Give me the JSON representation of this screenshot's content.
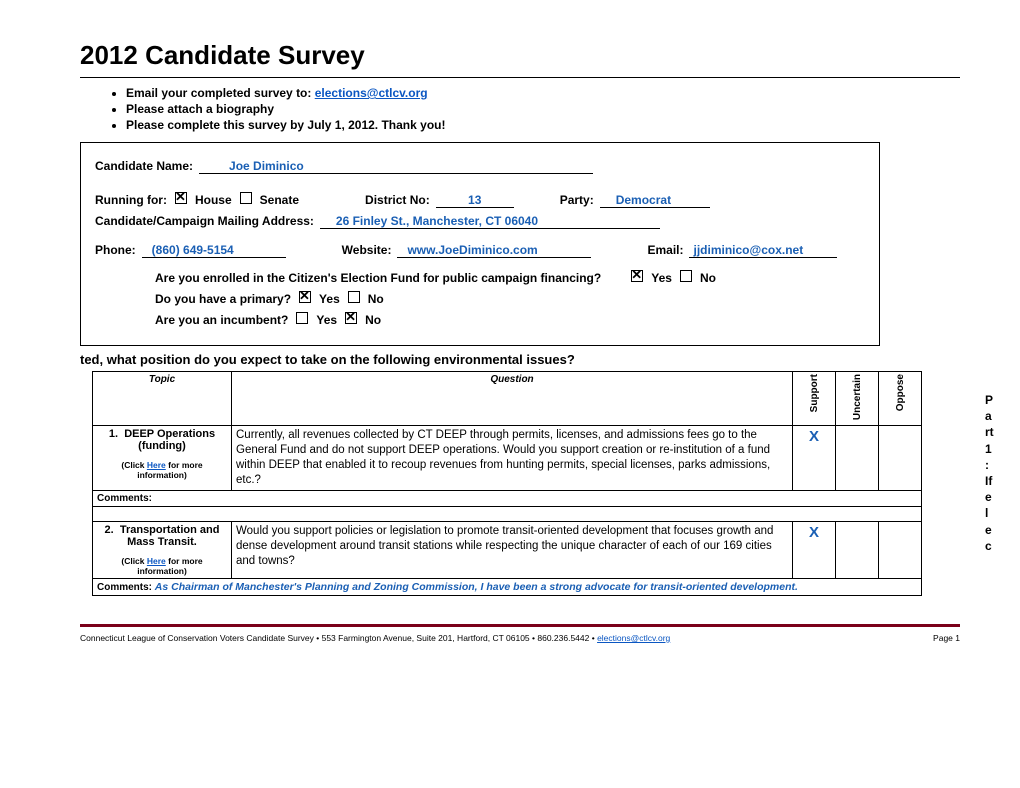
{
  "title": "2012 Candidate Survey",
  "instructions": {
    "emailPrefix": "Email your completed survey to: ",
    "emailAddr": "elections@ctlcv.org",
    "bio": "Please attach a biography",
    "deadline": "Please complete this survey by July 1, 2012.  Thank you!"
  },
  "candidate": {
    "nameLabel": "Candidate Name:",
    "name": "Joe Diminico",
    "runningLabel": "Running for:",
    "houseLabel": "House",
    "senateLabel": "Senate",
    "houseChecked": true,
    "senateChecked": false,
    "districtLabel": "District No:",
    "district": "13",
    "partyLabel": "Party:",
    "party": "Democrat",
    "addrLabel": "Candidate/Campaign Mailing Address:",
    "addr": "26 Finley St., Manchester, CT 06040",
    "phoneLabel": "Phone:",
    "phone": "(860) 649-5154",
    "websiteLabel": "Website:",
    "website": "www.JoeDiminico.com",
    "emailLabel": "Email:",
    "email": "jjdiminico@cox.net",
    "cefQuestion": "Are you enrolled in the Citizen's Election Fund for public campaign financing?",
    "cefYes": true,
    "primaryQuestion": "Do you have a primary?",
    "primaryYes": true,
    "incumbentQuestion": "Are you an incumbent?",
    "incumbentNo": true,
    "yesLabel": "Yes",
    "noLabel": "No"
  },
  "sideText": "Part 1: If elec",
  "part1Title": "ted, what position do you expect to take on the following environmental issues?",
  "tableHeaders": {
    "topic": "Topic",
    "question": "Question",
    "support": "Support",
    "uncertain": "Uncertain",
    "oppose": "Oppose"
  },
  "clickHere": "Here",
  "clickPrefix": "(Click ",
  "clickSuffix": " for more information)",
  "commentsLabel": "Comments:",
  "rows": [
    {
      "num": "1.",
      "topic": "DEEP Operations (funding)",
      "question": "Currently, all revenues collected by CT DEEP through permits, licenses, and admissions fees go to the General Fund and do not support DEEP operations.  Would you support creation or re-institution of a fund within DEEP that enabled it to recoup revenues from hunting permits, special licenses, parks admissions, etc.?",
      "support": "X",
      "uncertain": "",
      "oppose": "",
      "comment": ""
    },
    {
      "num": "2.",
      "topic": "Transportation and Mass Transit.",
      "question": "Would you support policies or legislation to promote transit-oriented development that focuses growth and dense development around transit stations while respecting the unique character of each of our 169 cities and towns?",
      "support": "X",
      "uncertain": "",
      "oppose": "",
      "comment": "As Chairman of Manchester's Planning and Zoning Commission, I have been a strong advocate for transit-oriented development."
    }
  ],
  "footer": {
    "org": "Connecticut League of Conservation Voters Candidate Survey  •  553 Farmington Avenue, Suite 201, Hartford, CT 06105 • 860.236.5442 •  ",
    "email": "elections@ctlcv.org",
    "page": "Page 1"
  }
}
